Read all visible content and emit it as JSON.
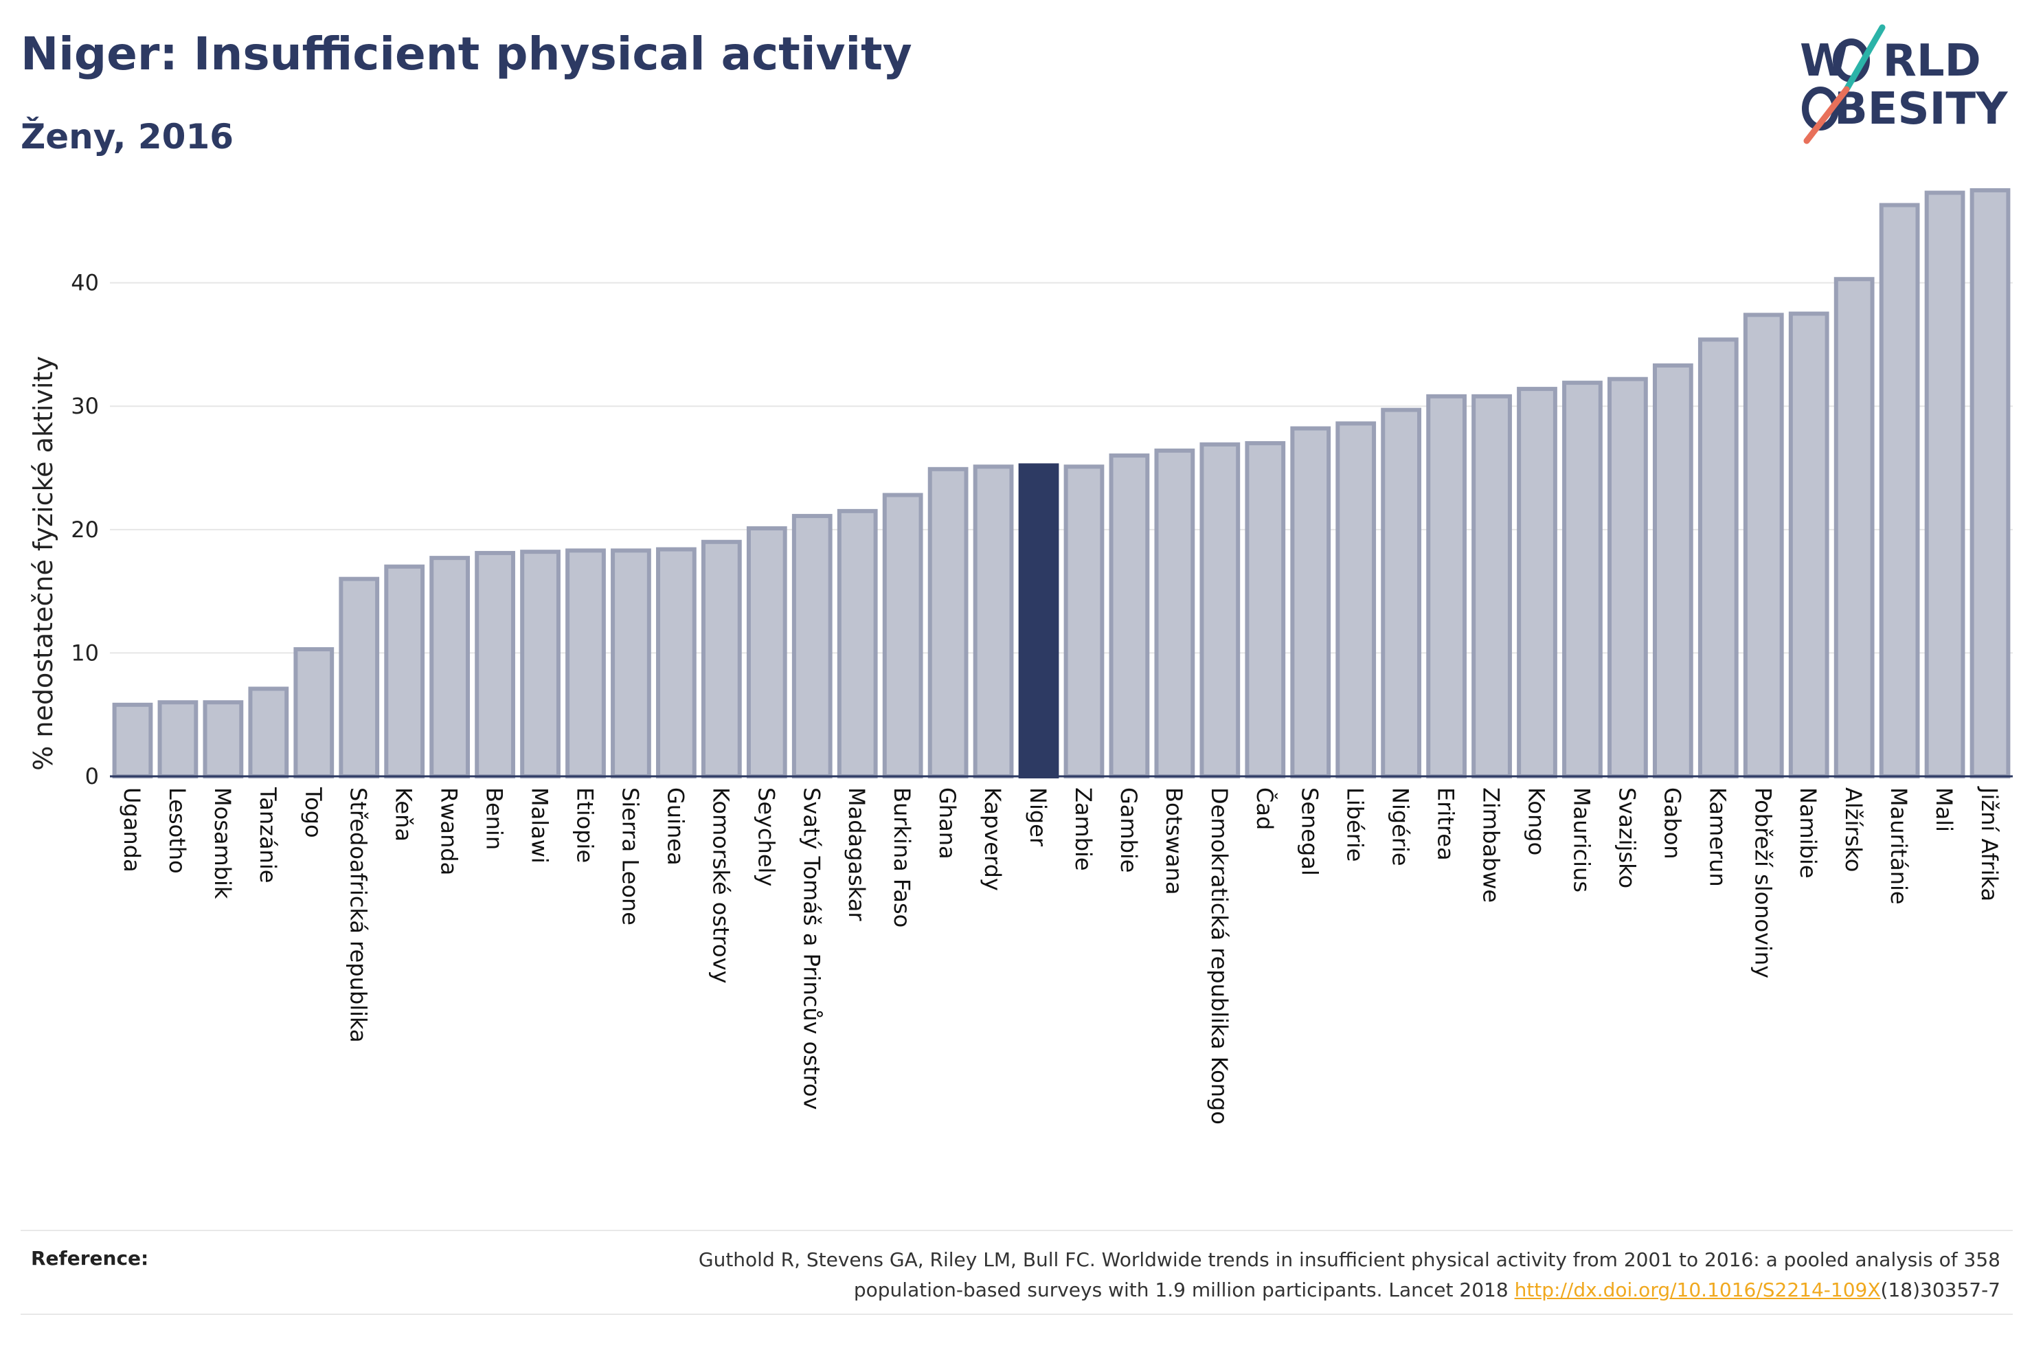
{
  "header": {
    "title": "Niger: Insufficient physical activity",
    "subtitle": "Ženy, 2016"
  },
  "logo": {
    "line1": "W",
    "line1_rest": "RLD",
    "line2_rest": "BESITY",
    "slash_teal": "#2bb3a8",
    "slash_coral": "#e8705a"
  },
  "chart_data": {
    "type": "bar",
    "ylabel": "% nedostatečné fyzické aktivity",
    "ylim": [
      0,
      49
    ],
    "yticks": [
      0,
      10,
      20,
      30,
      40
    ],
    "grid": true,
    "highlight": "Niger",
    "colors": {
      "bar_fill": "#bfc3d0",
      "bar_stroke": "#9aa0b6",
      "highlight_fill": "#2d3a63",
      "axis": "#2d3a63",
      "grid": "#e6e6e6"
    },
    "categories": [
      "Uganda",
      "Lesotho",
      "Mosambik",
      "Tanzánie",
      "Togo",
      "Středoafrická republika",
      "Keňa",
      "Rwanda",
      "Benin",
      "Malawi",
      "Etiopie",
      "Sierra Leone",
      "Guinea",
      "Komorské ostrovy",
      "Seychely",
      "Svatý Tomáš a Princův ostrov",
      "Madagaskar",
      "Burkina Faso",
      "Ghana",
      "Kapverdy",
      "Niger",
      "Zambie",
      "Gambie",
      "Botswana",
      "Demokratická republika Kongo",
      "Čad",
      "Senegal",
      "Libérie",
      "Nigérie",
      "Eritrea",
      "Zimbabwe",
      "Kongo",
      "Mauricius",
      "Svazijsko",
      "Gabon",
      "Kamerun",
      "Pobřeží slonoviny",
      "Namibie",
      "Alžírsko",
      "Mauritánie",
      "Mali",
      "Jižní Afrika"
    ],
    "values": [
      5.8,
      6.0,
      6.0,
      7.1,
      10.3,
      16.0,
      17.0,
      17.7,
      18.1,
      18.2,
      18.3,
      18.3,
      18.4,
      19.0,
      20.1,
      21.1,
      21.5,
      22.8,
      24.9,
      25.1,
      25.2,
      25.1,
      26.0,
      26.4,
      26.9,
      27.0,
      28.2,
      28.6,
      29.7,
      30.8,
      30.8,
      31.4,
      31.9,
      32.2,
      33.3,
      35.4,
      37.4,
      37.5,
      40.3,
      46.3,
      47.3,
      47.5
    ]
  },
  "reference": {
    "label": "Reference:",
    "line1": "Guthold R, Stevens GA, Riley LM, Bull FC. Worldwide trends in insufficient physical activity from 2001 to 2016: a pooled analysis of 358",
    "line2_pre": "population-based surveys with 1.9 million participants. Lancet 2018 ",
    "link": "http://dx.doi.org/10.1016/S2214-109X",
    "line2_post": "(18)30357-7"
  }
}
